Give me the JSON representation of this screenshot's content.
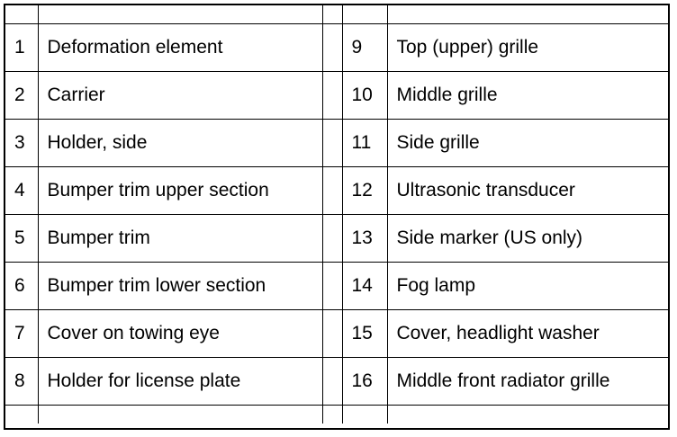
{
  "legend": {
    "left": [
      {
        "num": "1",
        "label": "Deformation element"
      },
      {
        "num": "2",
        "label": "Carrier"
      },
      {
        "num": "3",
        "label": "Holder, side"
      },
      {
        "num": "4",
        "label": "Bumper trim upper section"
      },
      {
        "num": "5",
        "label": "Bumper trim"
      },
      {
        "num": "6",
        "label": "Bumper trim lower section"
      },
      {
        "num": "7",
        "label": "Cover on towing eye"
      },
      {
        "num": "8",
        "label": "Holder for license plate"
      }
    ],
    "right": [
      {
        "num": "9",
        "label": "Top (upper) grille"
      },
      {
        "num": "10",
        "label": "Middle grille"
      },
      {
        "num": "11",
        "label": "Side grille"
      },
      {
        "num": "12",
        "label": "Ultrasonic transducer"
      },
      {
        "num": "13",
        "label": "Side marker (US only)"
      },
      {
        "num": "14",
        "label": "Fog lamp"
      },
      {
        "num": "15",
        "label": "Cover, headlight washer"
      },
      {
        "num": "16",
        "label": "Middle front radiator grille"
      }
    ]
  }
}
